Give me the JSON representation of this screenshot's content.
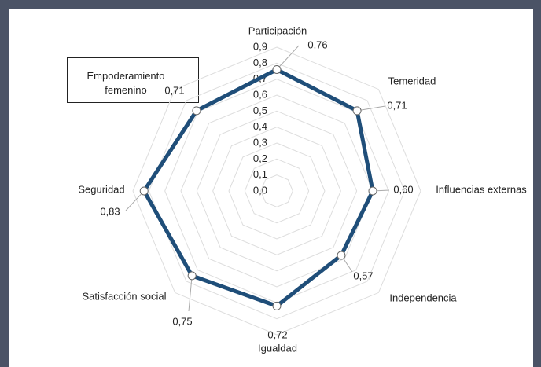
{
  "chart_data": {
    "type": "radar",
    "categories": [
      "Participación",
      "Temeridad",
      "Influencias externas",
      "Independencia",
      "Igualdad",
      "Satisfacción social",
      "Seguridad",
      "Empoderamiento femenino"
    ],
    "values": [
      0.76,
      0.71,
      0.6,
      0.57,
      0.72,
      0.75,
      0.83,
      0.71
    ],
    "value_labels": [
      "0,76",
      "0,71",
      "0,60",
      "0,57",
      "0,72",
      "0,75",
      "0,83",
      "0,71"
    ],
    "color": "#1f4e79",
    "ylim": [
      0,
      0.9
    ],
    "yticks": [
      {
        "value": 0,
        "label": "0,0"
      },
      {
        "value": 0.1,
        "label": "0,1"
      },
      {
        "value": 0.2,
        "label": "0,2"
      },
      {
        "value": 0.3,
        "label": "0,3"
      },
      {
        "value": 0.4,
        "label": "0,4"
      },
      {
        "value": 0.5,
        "label": "0,5"
      },
      {
        "value": 0.6,
        "label": "0,6"
      },
      {
        "value": 0.7,
        "label": "0,7"
      },
      {
        "value": 0.8,
        "label": "0,8"
      },
      {
        "value": 0.9,
        "label": "0,9"
      }
    ],
    "grid": true
  }
}
